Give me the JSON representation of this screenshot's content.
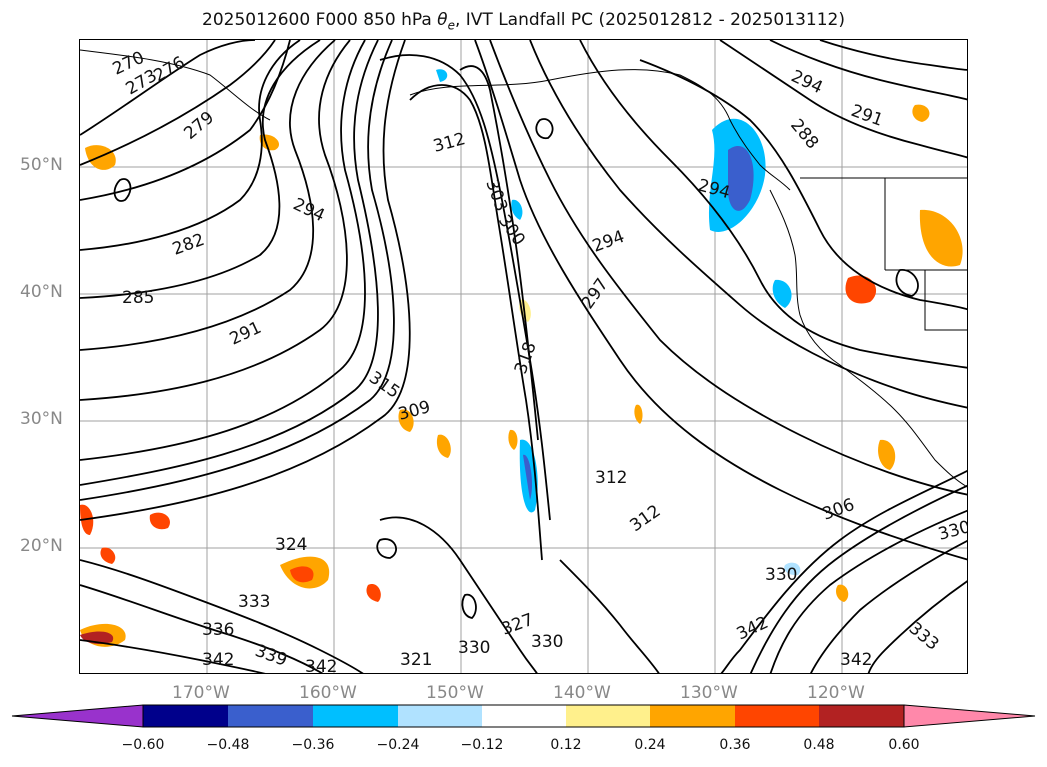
{
  "title_main": "2025012600 F000 850 hPa ",
  "title_symbol_base": "θ",
  "title_symbol_sub": "e",
  "title_rest": ", IVT Landfall PC (2025012812 - 2025013112)",
  "lat_labels": [
    "50°N",
    "40°N",
    "30°N",
    "20°N"
  ],
  "lon_labels": [
    "170°W",
    "160°W",
    "150°W",
    "140°W",
    "130°W",
    "120°W"
  ],
  "contour_labels": [
    "270",
    "273",
    "276",
    "279",
    "282",
    "285",
    "291",
    "294",
    "297",
    "300",
    "303",
    "306",
    "309",
    "312",
    "315",
    "318",
    "321",
    "324",
    "327",
    "330",
    "333",
    "336",
    "339",
    "342",
    "288"
  ],
  "colorbar": {
    "ticks": [
      "−0.60",
      "−0.48",
      "−0.36",
      "−0.24",
      "−0.12",
      "0.12",
      "0.24",
      "0.36",
      "0.48",
      "0.60"
    ],
    "colors": [
      "#9932cc",
      "#00008b",
      "#3a5fcd",
      "#00bfff",
      "#b0e2ff",
      "#ffffff",
      "#fff08c",
      "#ffa500",
      "#ff4500",
      "#b22222",
      "#ff88aa"
    ]
  }
}
